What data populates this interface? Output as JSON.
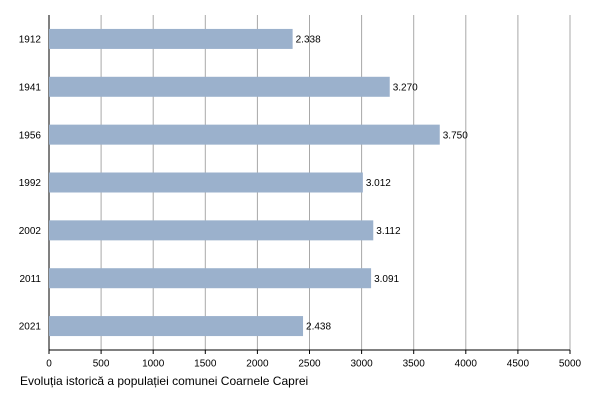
{
  "chart_data": {
    "type": "bar",
    "title": "Evoluția istorică a populației comunei Coarnele Caprei",
    "categories": [
      "1912",
      "1941",
      "1956",
      "1992",
      "2002",
      "2011",
      "2021"
    ],
    "values": [
      2338,
      3270,
      3750,
      3012,
      3112,
      3091,
      2438
    ],
    "value_labels": [
      "2.338",
      "3.270",
      "3.750",
      "3.012",
      "3.112",
      "3.091",
      "2.438"
    ],
    "color": "#9bb1cc",
    "xlim": [
      0,
      5000
    ],
    "xticks": [
      0,
      500,
      1000,
      1500,
      2000,
      2500,
      3000,
      3500,
      4000,
      4500,
      5000
    ],
    "grid": true
  }
}
